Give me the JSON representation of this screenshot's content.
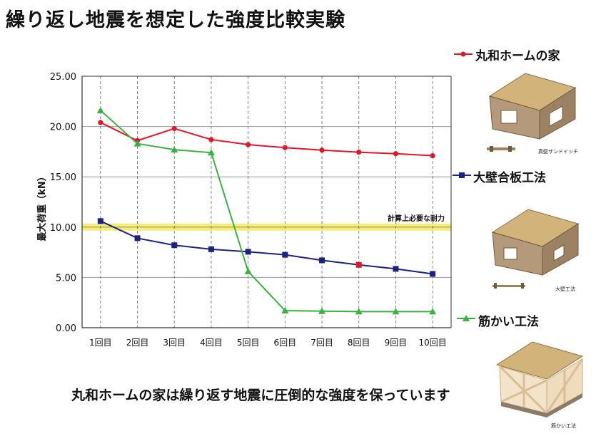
{
  "title": "繰り返し地震を想定した強度比較実験",
  "caption": "丸和ホームの家は繰り返す地震に圧倒的な強度を保っています",
  "colors": {
    "red": "#e0162b",
    "blue": "#1a237e",
    "green": "#3cb043",
    "highlight": "#f5ec7a",
    "house_wall": "#b49a7a",
    "house_roof": "#d2b47a"
  },
  "chart_data": {
    "type": "line",
    "title": "繰り返し地震を想定した強度比較実験",
    "categories": [
      "1回目",
      "2回目",
      "3回目",
      "4回目",
      "5回目",
      "6回目",
      "7回目",
      "8回目",
      "9回目",
      "10回目"
    ],
    "ylabel": "最大荷重（kN）",
    "ylim": [
      0,
      25
    ],
    "yticks": [
      "0.00",
      "5.00",
      "10.00",
      "15.00",
      "20.00",
      "25.00"
    ],
    "grid": true,
    "reference_line": {
      "value": 10,
      "label": "計算上必要な耐力"
    },
    "series": [
      {
        "name": "丸和ホームの家",
        "color": "#e0162b",
        "marker": "circle",
        "values": [
          20.4,
          18.6,
          19.8,
          18.7,
          18.2,
          17.9,
          17.65,
          17.45,
          17.3,
          17.1
        ]
      },
      {
        "name": "大壁合板工法",
        "color": "#1a237e",
        "marker": "square",
        "values": [
          10.6,
          8.9,
          8.2,
          7.8,
          7.55,
          7.25,
          6.7,
          6.25,
          5.85,
          5.35
        ]
      },
      {
        "name": "筋かい工法",
        "color": "#3cb043",
        "marker": "triangle",
        "values": [
          21.6,
          18.3,
          17.7,
          17.4,
          5.6,
          1.7,
          1.65,
          1.6,
          1.6,
          1.6
        ]
      }
    ]
  },
  "houses": [
    {
      "label": "真壁サンドイッチ"
    },
    {
      "label": "大壁工法"
    },
    {
      "label": "筋かい工法"
    }
  ]
}
